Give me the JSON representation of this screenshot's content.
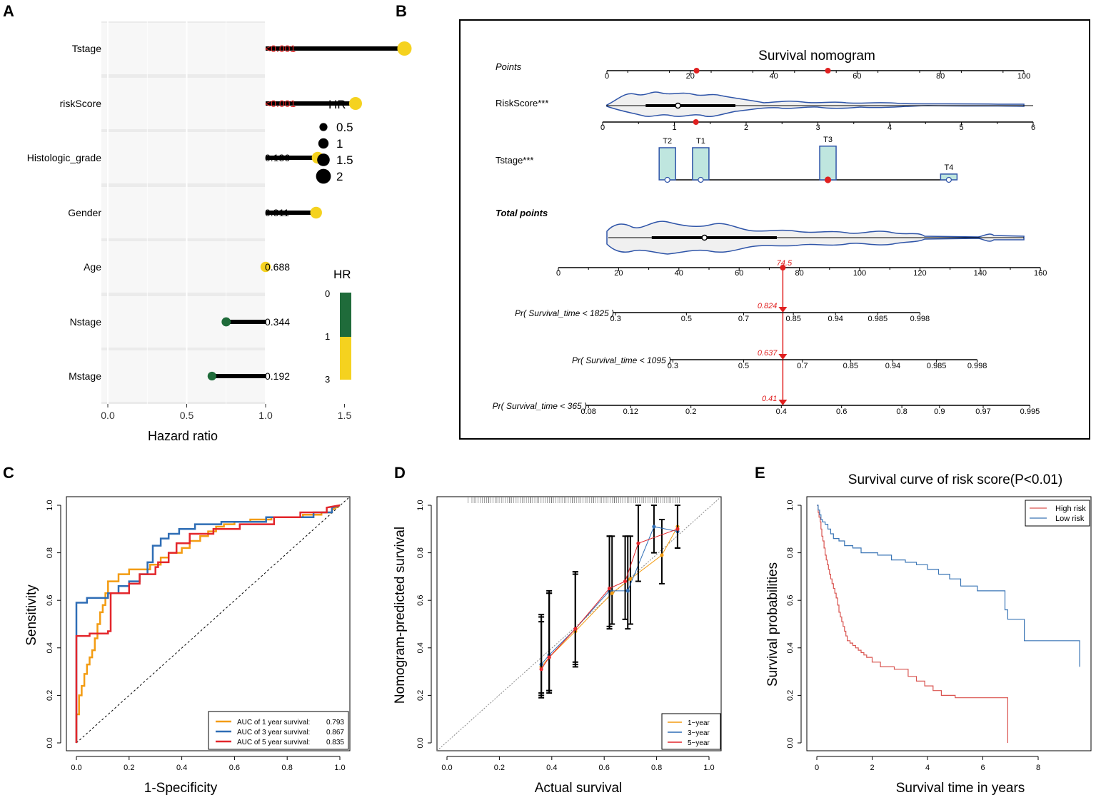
{
  "panel_labels": [
    "A",
    "B",
    "C",
    "D",
    "E"
  ],
  "colors": {
    "yellow": "#f5d21f",
    "green": "#1f6b3a",
    "red": "#e02020",
    "orange": "#f39c12",
    "blue": "#2e6db5",
    "crimson": "#e3262b",
    "nomo_blue": "#2e54a8",
    "teal_fill": "#bfe6df",
    "km_red": "#d9534f",
    "km_blue": "#3a75b5"
  },
  "chart_data": [
    {
      "panel": "A",
      "type": "scatter",
      "subtype": "lollipop",
      "xlabel": "Hazard ratio",
      "xlim": [
        -0.1,
        1.95
      ],
      "xticks": [
        "0.0",
        "0.5",
        "1.0",
        "1.5"
      ],
      "xtick_values": [
        0,
        0.5,
        1,
        1.5
      ],
      "reference": 1,
      "rows": [
        {
          "label": "Tstage",
          "hr": 1.88,
          "p": "<0.001",
          "significant": true,
          "color": "#f5d21f"
        },
        {
          "label": "riskScore",
          "hr": 1.57,
          "p": "<0.001",
          "significant": true,
          "color": "#f5d21f"
        },
        {
          "label": "Histologic_grade",
          "hr": 1.33,
          "p": "0.136",
          "significant": false,
          "color": "#f5d21f"
        },
        {
          "label": "Gender",
          "hr": 1.32,
          "p": "0.311",
          "significant": false,
          "color": "#f5d21f"
        },
        {
          "label": "Age",
          "hr": 1.0,
          "p": "0.688",
          "significant": false,
          "color": "#f5d21f"
        },
        {
          "label": "Nstage",
          "hr": 0.75,
          "p": "0.344",
          "significant": false,
          "color": "#1f6b3a"
        },
        {
          "label": "Mstage",
          "hr": 0.66,
          "p": "0.192",
          "significant": false,
          "color": "#1f6b3a"
        }
      ],
      "size_legend": {
        "title": "HR",
        "labels": [
          "0.5",
          "1",
          "1.5",
          "2"
        ],
        "values": [
          0.5,
          1,
          1.5,
          2
        ]
      },
      "color_legend": {
        "title": "HR",
        "labels": [
          "0",
          "1",
          "3"
        ],
        "values": [
          0,
          1,
          3
        ]
      }
    },
    {
      "panel": "B",
      "type": "nomogram",
      "title": "Survival nomogram",
      "points_axis": {
        "label": "Points",
        "ticks": [
          "0",
          "20",
          "40",
          "60",
          "80",
          "100"
        ],
        "values": [
          0,
          20,
          40,
          60,
          80,
          100
        ],
        "markers": [
          21.5,
          53
        ]
      },
      "riskscore": {
        "label": "RiskScore***",
        "ticks": [
          "0",
          "1",
          "2",
          "3",
          "4",
          "5",
          "6"
        ],
        "values": [
          0,
          1,
          2,
          3,
          4,
          5,
          6
        ],
        "median": 1.05,
        "marker": 1.3,
        "iqr": [
          0.6,
          1.85
        ]
      },
      "tstage": {
        "label": "Tstage***",
        "categories": [
          "T2",
          "T1",
          "T3",
          "T4"
        ],
        "points": [
          14.5,
          22.5,
          53,
          82
        ],
        "heights": [
          1.0,
          1.0,
          1.05,
          0.18
        ],
        "marker": "T3"
      },
      "total_points": {
        "label": "Total points",
        "ticks": [
          "0",
          "20",
          "40",
          "60",
          "80",
          "100",
          "120",
          "140",
          "160"
        ],
        "values": [
          0,
          20,
          40,
          60,
          80,
          100,
          120,
          140,
          160
        ],
        "value": 74.5,
        "value_label": "74.5",
        "median": 48.5,
        "iqr": [
          31,
          72.5
        ]
      },
      "probability_axes": [
        {
          "label": "Pr( Survival_time < 1825 )",
          "prediction": "0.824",
          "ticks": [
            {
              "t": "0.3",
              "v": 19
            },
            {
              "t": "0.5",
              "v": 42.5
            },
            {
              "t": "0.7",
              "v": 61.5
            },
            {
              "t": "0.85",
              "v": 78
            },
            {
              "t": "0.94",
              "v": 92
            },
            {
              "t": "0.985",
              "v": 106
            },
            {
              "t": "0.998",
              "v": 120
            }
          ]
        },
        {
          "label": "Pr( Survival_time < 1095 )",
          "prediction": "0.637",
          "ticks": [
            {
              "t": "0.3",
              "v": 38
            },
            {
              "t": "0.5",
              "v": 61.5
            },
            {
              "t": "0.7",
              "v": 81
            },
            {
              "t": "0.85",
              "v": 97
            },
            {
              "t": "0.94",
              "v": 111
            },
            {
              "t": "0.985",
              "v": 125.5
            },
            {
              "t": "0.998",
              "v": 139
            }
          ]
        },
        {
          "label": "Pr( Survival_time < 365 )",
          "prediction": "0.41",
          "ticks": [
            {
              "t": "0.08",
              "v": 10
            },
            {
              "t": "0.12",
              "v": 24
            },
            {
              "t": "0.2",
              "v": 44
            },
            {
              "t": "0.4",
              "v": 74
            },
            {
              "t": "0.6",
              "v": 94
            },
            {
              "t": "0.8",
              "v": 114
            },
            {
              "t": "0.9",
              "v": 126.5
            },
            {
              "t": "0.97",
              "v": 141
            },
            {
              "t": "0.995",
              "v": 156.5
            }
          ]
        }
      ]
    },
    {
      "panel": "C",
      "type": "line",
      "subtype": "roc",
      "xlabel": "1-Specificity",
      "ylabel": "Sensitivity",
      "xlim": [
        0,
        1
      ],
      "ylim": [
        0,
        1
      ],
      "xticks": [
        "0.0",
        "0.2",
        "0.4",
        "0.6",
        "0.8",
        "1.0"
      ],
      "yticks": [
        "0.0",
        "0.2",
        "0.4",
        "0.6",
        "0.8",
        "1.0"
      ],
      "tick_values": [
        0,
        0.2,
        0.4,
        0.6,
        0.8,
        1
      ],
      "legend_position": "bottom-right",
      "series": [
        {
          "name": "AUC of 1 year survival:",
          "auc": "0.793",
          "color": "#f39c12",
          "x": [
            0,
            0,
            0.01,
            0.01,
            0.02,
            0.02,
            0.03,
            0.03,
            0.04,
            0.04,
            0.05,
            0.05,
            0.06,
            0.06,
            0.07,
            0.07,
            0.08,
            0.08,
            0.09,
            0.09,
            0.1,
            0.1,
            0.11,
            0.11,
            0.12,
            0.12,
            0.16,
            0.16,
            0.2,
            0.2,
            0.28,
            0.28,
            0.32,
            0.32,
            0.35,
            0.35,
            0.4,
            0.4,
            0.43,
            0.43,
            0.47,
            0.47,
            0.5,
            0.5,
            0.53,
            0.53,
            0.56,
            0.56,
            0.6,
            0.6,
            0.66,
            0.66,
            0.74,
            0.74,
            0.86,
            0.86,
            0.93,
            0.93,
            0.97,
            0.97,
            1
          ],
          "y": [
            0,
            0.12,
            0.12,
            0.2,
            0.2,
            0.24,
            0.24,
            0.29,
            0.29,
            0.33,
            0.33,
            0.36,
            0.36,
            0.39,
            0.39,
            0.44,
            0.44,
            0.5,
            0.5,
            0.55,
            0.55,
            0.58,
            0.58,
            0.63,
            0.63,
            0.68,
            0.68,
            0.71,
            0.71,
            0.73,
            0.73,
            0.75,
            0.75,
            0.78,
            0.78,
            0.8,
            0.8,
            0.82,
            0.82,
            0.85,
            0.85,
            0.87,
            0.87,
            0.89,
            0.89,
            0.91,
            0.91,
            0.92,
            0.92,
            0.93,
            0.93,
            0.94,
            0.94,
            0.95,
            0.95,
            0.96,
            0.96,
            0.97,
            0.97,
            0.98,
            1
          ]
        },
        {
          "name": "AUC of 3 year survival:",
          "auc": "0.867",
          "color": "#2e6db5",
          "x": [
            0,
            0,
            0.04,
            0.04,
            0.12,
            0.12,
            0.16,
            0.16,
            0.2,
            0.2,
            0.24,
            0.24,
            0.27,
            0.27,
            0.29,
            0.29,
            0.32,
            0.32,
            0.35,
            0.35,
            0.39,
            0.39,
            0.45,
            0.45,
            0.55,
            0.55,
            0.72,
            0.72,
            0.9,
            0.9,
            0.97,
            0.97,
            1
          ],
          "y": [
            0,
            0.59,
            0.59,
            0.61,
            0.61,
            0.63,
            0.63,
            0.66,
            0.66,
            0.68,
            0.68,
            0.71,
            0.71,
            0.76,
            0.76,
            0.83,
            0.83,
            0.86,
            0.86,
            0.88,
            0.88,
            0.9,
            0.9,
            0.92,
            0.92,
            0.93,
            0.93,
            0.95,
            0.95,
            0.97,
            0.97,
            0.99,
            1
          ]
        },
        {
          "name": "AUC of 5 year survival:",
          "auc": "0.835",
          "color": "#e3262b",
          "x": [
            0,
            0,
            0.05,
            0.05,
            0.12,
            0.12,
            0.13,
            0.13,
            0.2,
            0.2,
            0.24,
            0.24,
            0.3,
            0.3,
            0.31,
            0.31,
            0.35,
            0.35,
            0.38,
            0.38,
            0.43,
            0.43,
            0.52,
            0.52,
            0.62,
            0.62,
            0.75,
            0.75,
            0.85,
            0.85,
            0.95,
            0.95,
            1
          ],
          "y": [
            0,
            0.45,
            0.45,
            0.46,
            0.46,
            0.47,
            0.47,
            0.63,
            0.63,
            0.67,
            0.67,
            0.71,
            0.71,
            0.74,
            0.74,
            0.76,
            0.76,
            0.8,
            0.8,
            0.84,
            0.84,
            0.88,
            0.88,
            0.9,
            0.9,
            0.92,
            0.92,
            0.95,
            0.95,
            0.97,
            0.97,
            0.99,
            1
          ]
        }
      ]
    },
    {
      "panel": "D",
      "type": "line",
      "subtype": "calibration",
      "xlabel": "Actual survival",
      "ylabel": "Nomogram-predicted survival",
      "xlim": [
        0,
        1
      ],
      "ylim": [
        0,
        1
      ],
      "xticks": [
        "0.0",
        "0.2",
        "0.4",
        "0.6",
        "0.8",
        "1.0"
      ],
      "yticks": [
        "0.0",
        "0.2",
        "0.4",
        "0.6",
        "0.8",
        "1.0"
      ],
      "tick_values": [
        0,
        0.2,
        0.4,
        0.6,
        0.8,
        1
      ],
      "legend_position": "bottom-right",
      "series": [
        {
          "name": "1−year",
          "color": "#f39c12",
          "x": [
            0.36,
            0.39,
            0.49,
            0.63,
            0.7,
            0.82,
            0.88
          ],
          "y": [
            0.32,
            0.36,
            0.47,
            0.63,
            0.69,
            0.79,
            0.91
          ],
          "lower": [
            0.2,
            0.22,
            0.33,
            0.5,
            0.5,
            0.67,
            0.82
          ],
          "upper": [
            0.51,
            0.63,
            0.72,
            0.87,
            0.87,
            0.94,
            1.0
          ]
        },
        {
          "name": "3−year",
          "color": "#2e6db5",
          "x": [
            0.36,
            0.39,
            0.49,
            0.62,
            0.69,
            0.79,
            0.88
          ],
          "y": [
            0.33,
            0.37,
            0.48,
            0.64,
            0.64,
            0.91,
            0.89
          ],
          "lower": [
            0.21,
            0.22,
            0.34,
            0.49,
            0.48,
            0.8,
            0.82
          ],
          "upper": [
            0.54,
            0.64,
            0.72,
            0.87,
            0.87,
            1.0,
            1.0
          ]
        },
        {
          "name": "5−year",
          "color": "#e3262b",
          "x": [
            0.36,
            0.39,
            0.49,
            0.62,
            0.68,
            0.73,
            0.88
          ],
          "y": [
            0.31,
            0.36,
            0.48,
            0.65,
            0.68,
            0.84,
            0.9
          ],
          "lower": [
            0.19,
            0.21,
            0.32,
            0.48,
            0.52,
            0.68,
            0.82
          ],
          "upper": [
            0.53,
            0.63,
            0.71,
            0.87,
            0.87,
            1.0,
            1.0
          ]
        }
      ]
    },
    {
      "panel": "E",
      "type": "line",
      "subtype": "kaplan-meier",
      "title": "Survival curve of risk score(P<0.01)",
      "xlabel": "Survival time in years",
      "ylabel": "Survival probabilities",
      "xlim": [
        -0.3,
        9.5
      ],
      "ylim": [
        0,
        1
      ],
      "xticks": [
        "0",
        "2",
        "4",
        "6",
        "8"
      ],
      "xtick_values": [
        0,
        2,
        4,
        6,
        8
      ],
      "yticks": [
        "0.0",
        "0.2",
        "0.4",
        "0.6",
        "0.8",
        "1.0"
      ],
      "ytick_values": [
        0,
        0.2,
        0.4,
        0.6,
        0.8,
        1
      ],
      "legend_position": "top-right",
      "series": [
        {
          "name": "High risk",
          "color": "#d9534f",
          "x": [
            0,
            0.05,
            0.08,
            0.12,
            0.15,
            0.18,
            0.22,
            0.26,
            0.3,
            0.34,
            0.38,
            0.42,
            0.46,
            0.5,
            0.55,
            0.6,
            0.65,
            0.7,
            0.75,
            0.8,
            0.85,
            0.9,
            0.95,
            1.0,
            1.05,
            1.1,
            1.2,
            1.3,
            1.4,
            1.5,
            1.6,
            1.7,
            1.8,
            2.0,
            2.3,
            2.8,
            3.3,
            3.6,
            3.9,
            4.2,
            4.5,
            5.0,
            6.9,
            6.9
          ],
          "y": [
            1.0,
            0.97,
            0.95,
            0.93,
            0.9,
            0.87,
            0.85,
            0.82,
            0.79,
            0.77,
            0.75,
            0.73,
            0.71,
            0.69,
            0.67,
            0.65,
            0.63,
            0.61,
            0.58,
            0.55,
            0.53,
            0.51,
            0.49,
            0.47,
            0.45,
            0.43,
            0.42,
            0.41,
            0.4,
            0.39,
            0.38,
            0.37,
            0.36,
            0.34,
            0.32,
            0.31,
            0.28,
            0.26,
            0.24,
            0.22,
            0.2,
            0.19,
            0.19,
            0.0
          ]
        },
        {
          "name": "Low risk",
          "color": "#3a75b5",
          "x": [
            0,
            0.05,
            0.1,
            0.15,
            0.2,
            0.3,
            0.4,
            0.5,
            0.6,
            0.8,
            1.0,
            1.3,
            1.6,
            2.2,
            2.7,
            3.2,
            3.6,
            4.0,
            4.4,
            4.8,
            5.2,
            5.8,
            6.2,
            6.7,
            6.8,
            6.9,
            7.5,
            8.8,
            9.5
          ],
          "y": [
            1.0,
            0.98,
            0.96,
            0.94,
            0.93,
            0.92,
            0.9,
            0.88,
            0.86,
            0.85,
            0.83,
            0.82,
            0.8,
            0.79,
            0.77,
            0.76,
            0.75,
            0.73,
            0.71,
            0.69,
            0.66,
            0.64,
            0.64,
            0.64,
            0.56,
            0.52,
            0.43,
            0.43,
            0.32
          ]
        }
      ]
    }
  ]
}
